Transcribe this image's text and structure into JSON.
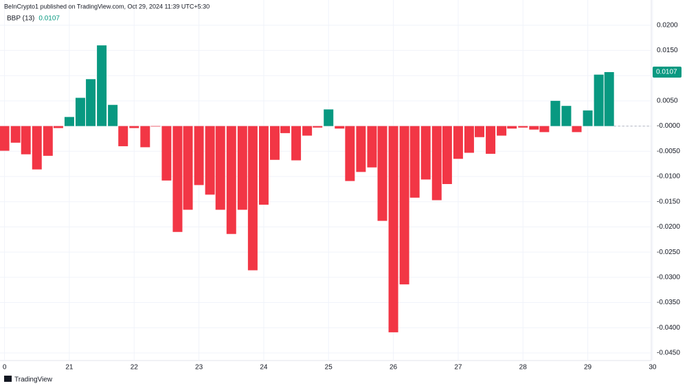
{
  "header": "BeInCrypto1 published on TradingView.com, Oct 29, 2024 11:39 UTC+5:30",
  "brand": "TradingView",
  "chart_data": {
    "type": "bar",
    "series": [
      {
        "name": "BBP (13)",
        "up_color": "#089981",
        "down_color": "#f23645",
        "last_value_label": "0.0107",
        "x": [
          20,
          20.17,
          20.33,
          20.5,
          20.67,
          20.83,
          21,
          21.17,
          21.33,
          21.5,
          21.67,
          21.83,
          22,
          22.17,
          22.33,
          22.5,
          22.67,
          22.83,
          23,
          23.17,
          23.33,
          23.5,
          23.67,
          23.83,
          24,
          24.17,
          24.33,
          24.5,
          24.67,
          24.83,
          25,
          25.17,
          25.33,
          25.5,
          25.67,
          25.83,
          26,
          26.17,
          26.33,
          26.5,
          26.67,
          26.83,
          27,
          27.17,
          27.33,
          27.5,
          27.67,
          27.83,
          28,
          28.17,
          28.33,
          28.5,
          28.67,
          28.83,
          29,
          29.17,
          29.33
        ],
        "values": [
          -0.0049,
          -0.0033,
          -0.0056,
          -0.0086,
          -0.0059,
          -0.0004,
          0.0018,
          0.0056,
          0.0093,
          0.016,
          0.0042,
          -0.004,
          -0.0004,
          -0.0042,
          -0.0001,
          -0.0108,
          -0.021,
          -0.0166,
          -0.0117,
          -0.0136,
          -0.0166,
          -0.0214,
          -0.0166,
          -0.0286,
          -0.0156,
          -0.0067,
          -0.0014,
          -0.0068,
          -0.0019,
          -0.0003,
          0.0033,
          -0.0005,
          -0.0109,
          -0.0091,
          -0.0082,
          -0.0188,
          -0.0409,
          -0.0314,
          -0.0142,
          -0.0106,
          -0.0147,
          -0.0115,
          -0.0065,
          -0.0053,
          -0.0022,
          -0.0055,
          -0.0019,
          -0.0005,
          -0.0003,
          -0.0007,
          -0.0012,
          0.005,
          0.004,
          -0.0012,
          0.0031,
          0.0102,
          0.0107
        ]
      }
    ],
    "xlim": [
      19.93,
      29.98
    ],
    "xticks": [
      {
        "value": 20,
        "label": "0"
      },
      21,
      22,
      23,
      24,
      25,
      26,
      27,
      28,
      29,
      30
    ],
    "ylim": [
      -0.0465,
      0.025
    ],
    "yticks": [
      {
        "value": 0.02,
        "label": "0.0200"
      },
      {
        "value": 0.015,
        "label": "0.0150"
      },
      {
        "value": 0.01,
        "label": "0.0100"
      },
      {
        "value": 0.005,
        "label": "0.0050"
      },
      {
        "value": 0,
        "label": "-0.0000"
      },
      {
        "value": -0.005,
        "label": "-0.0050"
      },
      {
        "value": -0.01,
        "label": "-0.0100"
      },
      {
        "value": -0.015,
        "label": "-0.0150"
      },
      {
        "value": -0.02,
        "label": "-0.0200"
      },
      {
        "value": -0.025,
        "label": "-0.0250"
      },
      {
        "value": -0.03,
        "label": "-0.0300"
      },
      {
        "value": -0.035,
        "label": "-0.0350"
      },
      {
        "value": -0.04,
        "label": "-0.0400"
      },
      {
        "value": -0.045,
        "label": "-0.0450"
      }
    ],
    "grid": true
  }
}
